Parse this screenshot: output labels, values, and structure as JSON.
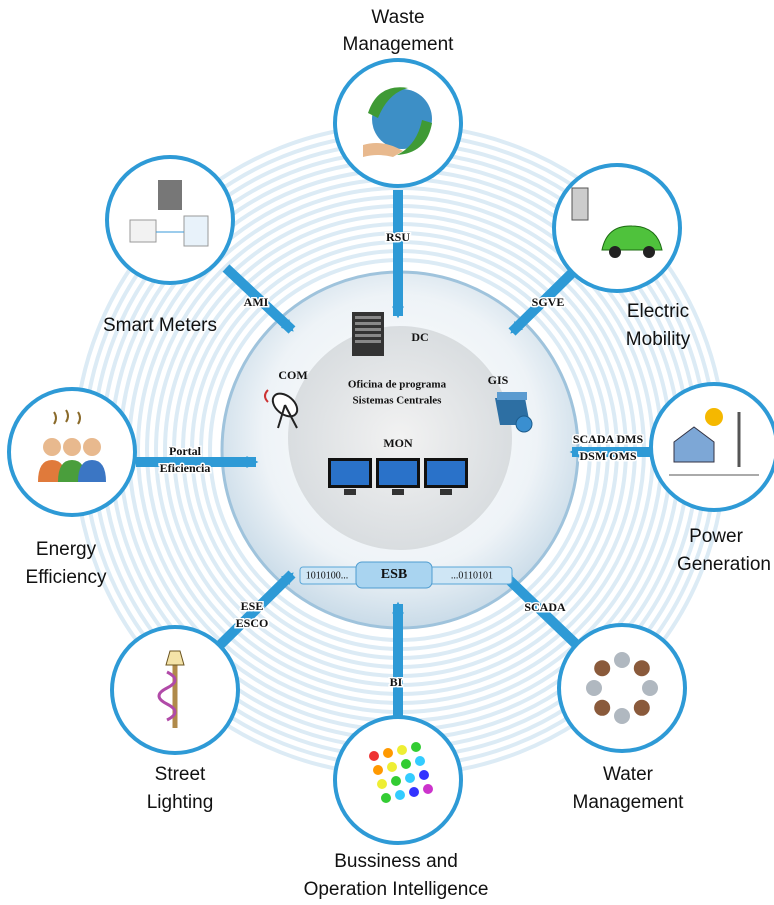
{
  "nodes": [
    {
      "label": [
        "Waste",
        "Management"
      ]
    },
    {
      "label": [
        "Electric",
        "Mobility"
      ]
    },
    {
      "label": [
        "Power",
        "Generation"
      ]
    },
    {
      "label": [
        "Water",
        "Management"
      ]
    },
    {
      "label": [
        "Bussiness and",
        "Operation Intelligence"
      ]
    },
    {
      "label": [
        "Street",
        "Lighting"
      ]
    },
    {
      "label": [
        "Energy",
        "Efficiency"
      ]
    },
    {
      "label": [
        "Smart Meters"
      ]
    }
  ],
  "connectors": [
    {
      "label": [
        "RSU"
      ]
    },
    {
      "label": [
        "SGVE"
      ]
    },
    {
      "label": [
        "SCADA DMS",
        "DSM OMS"
      ]
    },
    {
      "label": [
        "SCADA"
      ]
    },
    {
      "label": [
        "BI"
      ]
    },
    {
      "label": [
        "ESE",
        "ESCO"
      ]
    },
    {
      "label": [
        "Portal",
        "Eficiencia"
      ]
    },
    {
      "label": [
        "AMI"
      ]
    }
  ],
  "center": {
    "title": [
      "Oficina de programa",
      "Sistemas Centrales"
    ],
    "dc": "DC",
    "com": "COM",
    "gis": "GIS",
    "mon": "MON",
    "esb": "ESB",
    "esb_left": "1010100...",
    "esb_right": "...0110101"
  }
}
